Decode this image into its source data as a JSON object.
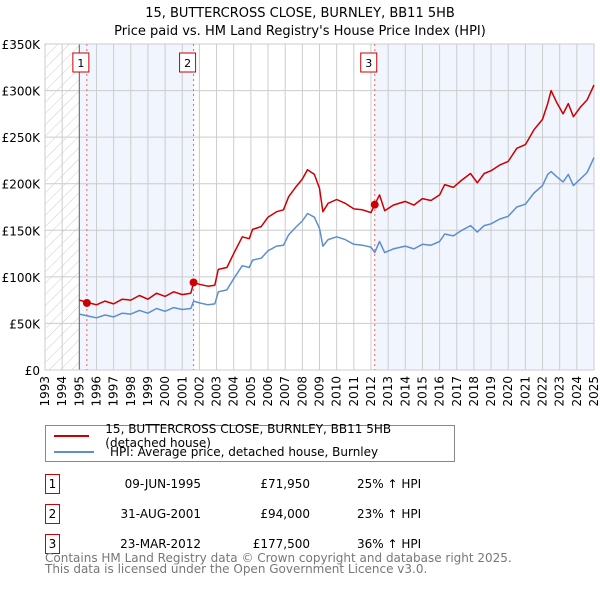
{
  "chart_data": {
    "type": "line",
    "title": "15, BUTTERCROSS CLOSE, BURNLEY, BB11 5HB",
    "subtitle": "Price paid vs. HM Land Registry's House Price Index (HPI)",
    "xlim": [
      1993,
      2025
    ],
    "ylim": [
      0,
      350000
    ],
    "x_ticks": [
      "1993",
      "1994",
      "1995",
      "1996",
      "1997",
      "1998",
      "1999",
      "2000",
      "2001",
      "2002",
      "2003",
      "2004",
      "2005",
      "2006",
      "2007",
      "2008",
      "2009",
      "2010",
      "2011",
      "2012",
      "2013",
      "2014",
      "2015",
      "2016",
      "2017",
      "2018",
      "2019",
      "2020",
      "2021",
      "2022",
      "2023",
      "2024",
      "2025"
    ],
    "y_ticks": [
      {
        "value": 0,
        "label": "£0"
      },
      {
        "value": 50000,
        "label": "£50K"
      },
      {
        "value": 100000,
        "label": "£100K"
      },
      {
        "value": 150000,
        "label": "£150K"
      },
      {
        "value": 200000,
        "label": "£200K"
      },
      {
        "value": 250000,
        "label": "£250K"
      },
      {
        "value": 300000,
        "label": "£300K"
      },
      {
        "value": 350000,
        "label": "£350K"
      }
    ],
    "grid": true,
    "data_start": 1995.0,
    "shaded_ranges": [
      [
        1995.0,
        2001.66
      ],
      [
        2012.22,
        2025
      ]
    ],
    "series": [
      {
        "name": "15, BUTTERCROSS CLOSE, BURNLEY, BB11 5HB (detached house)",
        "color": "#cc0000",
        "points": [
          [
            1995.0,
            75000
          ],
          [
            1995.5,
            72500
          ],
          [
            1996,
            70000
          ],
          [
            1996.5,
            74000
          ],
          [
            1997,
            71000
          ],
          [
            1997.5,
            76000
          ],
          [
            1998,
            75000
          ],
          [
            1998.5,
            80000
          ],
          [
            1999,
            76000
          ],
          [
            1999.5,
            82500
          ],
          [
            2000,
            79000
          ],
          [
            2000.5,
            84000
          ],
          [
            2001,
            81000
          ],
          [
            2001.5,
            82500
          ],
          [
            2001.67,
            94000
          ],
          [
            2002,
            92000
          ],
          [
            2002.5,
            90000
          ],
          [
            2002.9,
            91000
          ],
          [
            2003.1,
            108000
          ],
          [
            2003.6,
            110000
          ],
          [
            2004,
            125000
          ],
          [
            2004.5,
            143000
          ],
          [
            2004.9,
            141000
          ],
          [
            2005.1,
            151000
          ],
          [
            2005.6,
            154000
          ],
          [
            2006,
            164000
          ],
          [
            2006.5,
            170000
          ],
          [
            2006.9,
            172000
          ],
          [
            2007.2,
            186000
          ],
          [
            2007.6,
            196000
          ],
          [
            2008,
            205000
          ],
          [
            2008.3,
            215000
          ],
          [
            2008.7,
            210000
          ],
          [
            2009,
            195000
          ],
          [
            2009.2,
            170000
          ],
          [
            2009.5,
            179000
          ],
          [
            2010,
            183000
          ],
          [
            2010.5,
            179000
          ],
          [
            2011,
            173000
          ],
          [
            2011.5,
            172000
          ],
          [
            2012,
            169000
          ],
          [
            2012.22,
            177500
          ],
          [
            2012.5,
            188000
          ],
          [
            2012.8,
            171000
          ],
          [
            2013.3,
            177000
          ],
          [
            2014,
            181000
          ],
          [
            2014.5,
            177000
          ],
          [
            2015,
            184000
          ],
          [
            2015.5,
            182000
          ],
          [
            2016,
            188000
          ],
          [
            2016.3,
            199000
          ],
          [
            2016.8,
            196000
          ],
          [
            2017.3,
            204000
          ],
          [
            2017.8,
            211000
          ],
          [
            2018.2,
            201000
          ],
          [
            2018.6,
            211000
          ],
          [
            2019,
            214000
          ],
          [
            2019.5,
            220000
          ],
          [
            2020,
            224000
          ],
          [
            2020.5,
            238000
          ],
          [
            2021,
            242000
          ],
          [
            2021.5,
            258000
          ],
          [
            2022,
            269000
          ],
          [
            2022.3,
            286000
          ],
          [
            2022.5,
            300000
          ],
          [
            2022.8,
            288000
          ],
          [
            2023.2,
            275000
          ],
          [
            2023.5,
            286000
          ],
          [
            2023.8,
            272000
          ],
          [
            2024.2,
            282000
          ],
          [
            2024.6,
            290000
          ],
          [
            2025,
            306000
          ]
        ]
      },
      {
        "name": "HPI: Average price, detached house, Burnley",
        "color": "#5b8fd0",
        "points": [
          [
            1995.0,
            60000
          ],
          [
            1995.5,
            58000
          ],
          [
            1996,
            56000
          ],
          [
            1996.5,
            59000
          ],
          [
            1997,
            57000
          ],
          [
            1997.5,
            61000
          ],
          [
            1998,
            60000
          ],
          [
            1998.5,
            64000
          ],
          [
            1999,
            61000
          ],
          [
            1999.5,
            66000
          ],
          [
            2000,
            63000
          ],
          [
            2000.5,
            67000
          ],
          [
            2001,
            65000
          ],
          [
            2001.5,
            66000
          ],
          [
            2001.67,
            74000
          ],
          [
            2002,
            72000
          ],
          [
            2002.5,
            70000
          ],
          [
            2002.9,
            71000
          ],
          [
            2003.1,
            84000
          ],
          [
            2003.6,
            86000
          ],
          [
            2004,
            98000
          ],
          [
            2004.5,
            112000
          ],
          [
            2004.9,
            110000
          ],
          [
            2005.1,
            118000
          ],
          [
            2005.6,
            120000
          ],
          [
            2006,
            128000
          ],
          [
            2006.5,
            133000
          ],
          [
            2006.9,
            134000
          ],
          [
            2007.2,
            145000
          ],
          [
            2007.6,
            153000
          ],
          [
            2008,
            160000
          ],
          [
            2008.3,
            168000
          ],
          [
            2008.7,
            164000
          ],
          [
            2009,
            152000
          ],
          [
            2009.2,
            133000
          ],
          [
            2009.5,
            140000
          ],
          [
            2010,
            143000
          ],
          [
            2010.5,
            140000
          ],
          [
            2011,
            135000
          ],
          [
            2011.5,
            134000
          ],
          [
            2012,
            132000
          ],
          [
            2012.22,
            126000
          ],
          [
            2012.5,
            138000
          ],
          [
            2012.8,
            126000
          ],
          [
            2013.3,
            130000
          ],
          [
            2014,
            133000
          ],
          [
            2014.5,
            130000
          ],
          [
            2015,
            135000
          ],
          [
            2015.5,
            134000
          ],
          [
            2016,
            138000
          ],
          [
            2016.3,
            146000
          ],
          [
            2016.8,
            144000
          ],
          [
            2017.3,
            150000
          ],
          [
            2017.8,
            155000
          ],
          [
            2018.2,
            148000
          ],
          [
            2018.6,
            155000
          ],
          [
            2019,
            157000
          ],
          [
            2019.5,
            162000
          ],
          [
            2020,
            165000
          ],
          [
            2020.5,
            175000
          ],
          [
            2021,
            178000
          ],
          [
            2021.5,
            190000
          ],
          [
            2022,
            198000
          ],
          [
            2022.3,
            210000
          ],
          [
            2022.5,
            213000
          ],
          [
            2022.8,
            208000
          ],
          [
            2023.2,
            202000
          ],
          [
            2023.5,
            210000
          ],
          [
            2023.8,
            198000
          ],
          [
            2024.2,
            205000
          ],
          [
            2024.6,
            212000
          ],
          [
            2025,
            228000
          ]
        ]
      }
    ],
    "sales": [
      {
        "label": "1",
        "x": 1995.44,
        "price": 71950
      },
      {
        "label": "2",
        "x": 2001.66,
        "price": 94000
      },
      {
        "label": "3",
        "x": 2012.22,
        "price": 177500
      }
    ]
  },
  "legend": {
    "property": "15, BUTTERCROSS CLOSE, BURNLEY, BB11 5HB (detached house)",
    "hpi": "HPI: Average price, detached house, Burnley"
  },
  "transactions": [
    {
      "num": "1",
      "date": "09-JUN-1995",
      "price": "£71,950",
      "hpi": "25% ↑ HPI"
    },
    {
      "num": "2",
      "date": "31-AUG-2001",
      "price": "£94,000",
      "hpi": "23% ↑ HPI"
    },
    {
      "num": "3",
      "date": "23-MAR-2012",
      "price": "£177,500",
      "hpi": "36% ↑ HPI"
    }
  ],
  "footer": {
    "line1": "Contains HM Land Registry data © Crown copyright and database right 2025.",
    "line2": "This data is licensed under the Open Government Licence v3.0."
  }
}
